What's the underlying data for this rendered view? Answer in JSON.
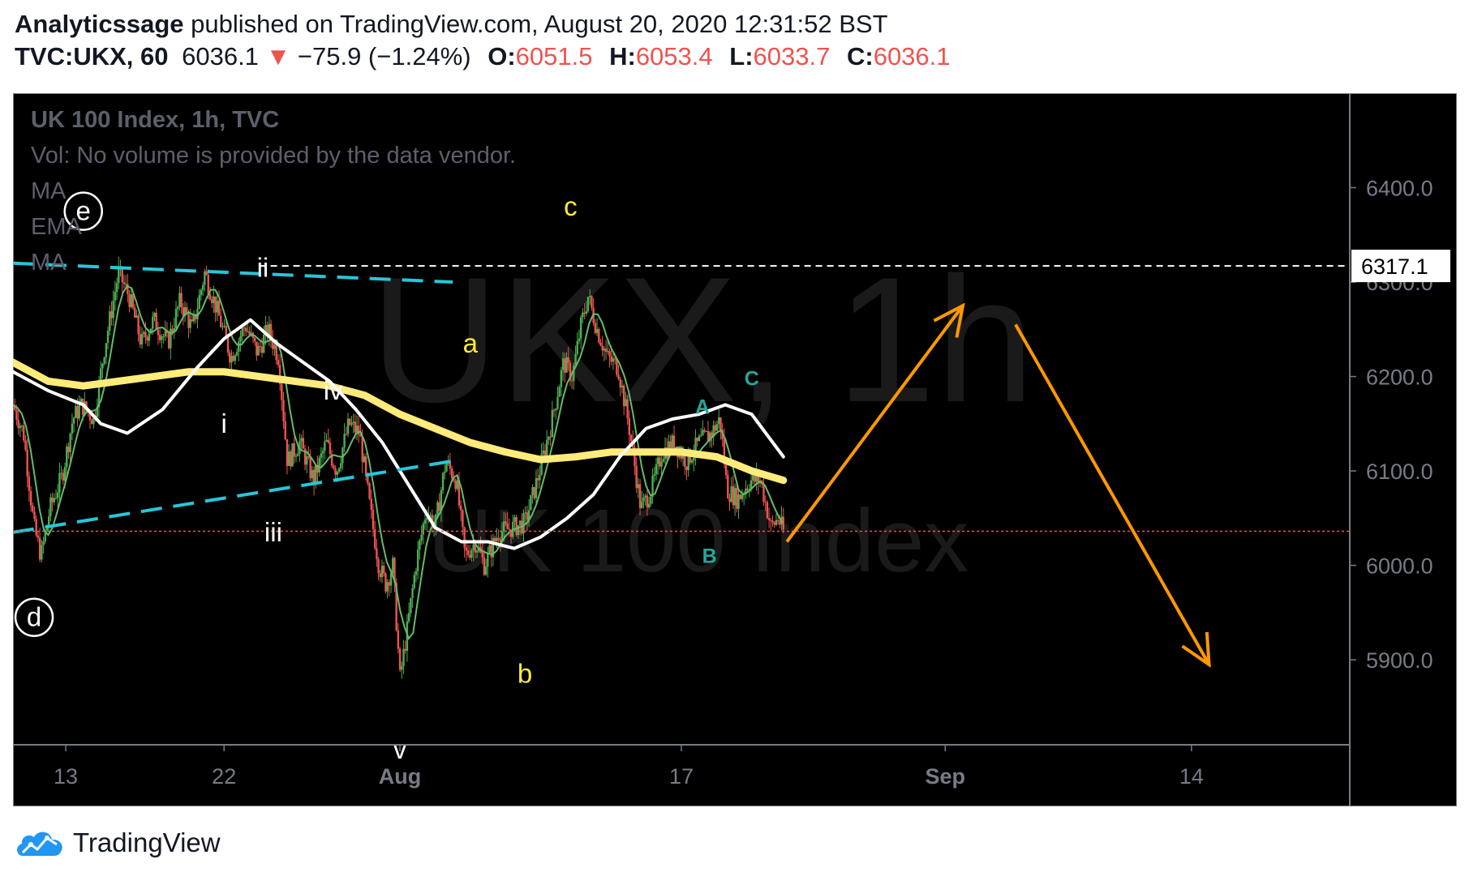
{
  "header": {
    "author": "Analyticssage",
    "published_text": "published on TradingView.com, August 20, 2020 12:31:52 BST",
    "symbol": "TVC:UKX, 60",
    "last": "6036.1",
    "change_arrow": "▼",
    "change": "−75.9 (−1.24%)",
    "o_label": "O:",
    "o_value": "6051.5",
    "h_label": "H:",
    "h_value": "6053.4",
    "l_label": "L:",
    "l_value": "6033.7",
    "c_label": "C:",
    "c_value": "6036.1"
  },
  "legend": {
    "title": "UK 100 Index, 1h, TVC",
    "vol": "Vol: No volume is provided by the data vendor.",
    "ma1": "MA",
    "ema": "EMA",
    "ma2": "MA"
  },
  "watermark": {
    "main": "UKX, 1h",
    "sub": "UK 100 Index"
  },
  "colors": {
    "background": "#000000",
    "up_candle": "#4caf50",
    "down_candle": "#ef5350",
    "ema_yellow": "#ffeb7a",
    "ma_white": "#ffffff",
    "ma_green": "#66bb6a",
    "trendline": "#26c6da",
    "projection": "#ff9800",
    "label_yellow": "#ffeb3b",
    "label_teal": "#26a69a"
  },
  "footer": {
    "brand": "TradingView"
  },
  "chart_data": {
    "type": "line",
    "subtype": "candlestick",
    "symbol": "TVC:UKX",
    "interval": "1h",
    "ylim": [
      5810,
      6500
    ],
    "y_ticks": [
      "6400.0",
      "6300.0",
      "6200.0",
      "6100.0",
      "6000.0",
      "5900.0"
    ],
    "y_tick_values": [
      6400,
      6300,
      6200,
      6100,
      6000,
      5900
    ],
    "x_ticks": [
      "13",
      "22",
      "Aug",
      "17",
      "Sep",
      "14"
    ],
    "x_tick_days": [
      13,
      22,
      32,
      48,
      63,
      77
    ],
    "xlim_days": [
      10,
      86
    ],
    "price_marker": {
      "value": 6317.1,
      "label": "6317.1"
    },
    "last_price": 6036.1,
    "price_path": [
      [
        10.0,
        6170
      ],
      [
        10.6,
        6140
      ],
      [
        11.2,
        6040
      ],
      [
        11.6,
        6010
      ],
      [
        12.1,
        6060
      ],
      [
        12.8,
        6095
      ],
      [
        13.4,
        6155
      ],
      [
        13.9,
        6170
      ],
      [
        14.6,
        6155
      ],
      [
        15.2,
        6230
      ],
      [
        16.0,
        6310
      ],
      [
        16.6,
        6285
      ],
      [
        17.3,
        6235
      ],
      [
        18.0,
        6260
      ],
      [
        18.8,
        6235
      ],
      [
        19.5,
        6280
      ],
      [
        20.2,
        6250
      ],
      [
        20.9,
        6310
      ],
      [
        21.6,
        6270
      ],
      [
        22.4,
        6220
      ],
      [
        23.2,
        6255
      ],
      [
        23.9,
        6225
      ],
      [
        24.5,
        6250
      ],
      [
        25.1,
        6220
      ],
      [
        25.6,
        6110
      ],
      [
        26.3,
        6130
      ],
      [
        27.1,
        6090
      ],
      [
        27.8,
        6130
      ],
      [
        28.4,
        6100
      ],
      [
        29.1,
        6150
      ],
      [
        29.7,
        6140
      ],
      [
        30.3,
        6060
      ],
      [
        30.8,
        6000
      ],
      [
        31.2,
        5980
      ],
      [
        31.6,
        6000
      ],
      [
        32.0,
        5880
      ],
      [
        32.4,
        5930
      ],
      [
        32.9,
        6000
      ],
      [
        33.5,
        6060
      ],
      [
        34.0,
        6040
      ],
      [
        34.6,
        6110
      ],
      [
        35.2,
        6090
      ],
      [
        35.7,
        6010
      ],
      [
        36.3,
        6025
      ],
      [
        36.8,
        6000
      ],
      [
        37.6,
        6035
      ],
      [
        38.4,
        6040
      ],
      [
        39.1,
        6045
      ],
      [
        39.8,
        6090
      ],
      [
        40.6,
        6150
      ],
      [
        41.3,
        6215
      ],
      [
        41.8,
        6200
      ],
      [
        42.3,
        6255
      ],
      [
        42.7,
        6285
      ],
      [
        43.2,
        6250
      ],
      [
        43.8,
        6220
      ],
      [
        44.4,
        6210
      ],
      [
        45.0,
        6150
      ],
      [
        45.7,
        6060
      ],
      [
        46.3,
        6080
      ],
      [
        46.9,
        6120
      ],
      [
        47.6,
        6130
      ],
      [
        48.3,
        6110
      ],
      [
        49.0,
        6130
      ],
      [
        49.7,
        6140
      ],
      [
        50.2,
        6155
      ],
      [
        50.6,
        6080
      ],
      [
        51.2,
        6070
      ],
      [
        51.9,
        6090
      ],
      [
        52.5,
        6090
      ],
      [
        53.1,
        6040
      ],
      [
        53.5,
        6050
      ],
      [
        53.8,
        6036
      ]
    ],
    "series": [
      {
        "name": "EMA",
        "color": "#ffeb7a",
        "points": [
          [
            10,
            6215
          ],
          [
            12,
            6195
          ],
          [
            14,
            6190
          ],
          [
            16,
            6195
          ],
          [
            18,
            6200
          ],
          [
            20,
            6205
          ],
          [
            22,
            6205
          ],
          [
            24,
            6200
          ],
          [
            26,
            6195
          ],
          [
            28,
            6190
          ],
          [
            30,
            6180
          ],
          [
            32,
            6160
          ],
          [
            34,
            6145
          ],
          [
            36,
            6130
          ],
          [
            38,
            6120
          ],
          [
            40,
            6112
          ],
          [
            42,
            6115
          ],
          [
            44,
            6120
          ],
          [
            46,
            6120
          ],
          [
            48,
            6120
          ],
          [
            50,
            6115
          ],
          [
            52,
            6100
          ],
          [
            53.8,
            6090
          ]
        ]
      },
      {
        "name": "MA",
        "color": "#ffffff",
        "points": [
          [
            10,
            6205
          ],
          [
            12,
            6185
          ],
          [
            14,
            6170
          ],
          [
            15,
            6150
          ],
          [
            16.5,
            6140
          ],
          [
            18.5,
            6165
          ],
          [
            20.5,
            6210
          ],
          [
            22,
            6240
          ],
          [
            23.5,
            6260
          ],
          [
            25,
            6235
          ],
          [
            26.5,
            6215
          ],
          [
            28,
            6195
          ],
          [
            29.5,
            6165
          ],
          [
            31,
            6130
          ],
          [
            32.5,
            6085
          ],
          [
            34,
            6040
          ],
          [
            35.5,
            6025
          ],
          [
            37,
            6025
          ],
          [
            38.5,
            6018
          ],
          [
            40,
            6030
          ],
          [
            41.5,
            6050
          ],
          [
            43,
            6075
          ],
          [
            44.5,
            6115
          ],
          [
            46,
            6145
          ],
          [
            47.5,
            6155
          ],
          [
            49,
            6160
          ],
          [
            50.5,
            6170
          ],
          [
            52,
            6160
          ],
          [
            53.8,
            6115
          ]
        ]
      }
    ],
    "trendlines": [
      {
        "points": [
          [
            10,
            6320
          ],
          [
            35,
            6300
          ]
        ]
      },
      {
        "points": [
          [
            10,
            6035
          ],
          [
            35.5,
            6112
          ]
        ]
      }
    ],
    "projection": [
      [
        54,
        6025
      ],
      [
        64,
        6275
      ],
      [
        67,
        6255
      ],
      [
        78,
        5895
      ]
    ],
    "wave_labels": [
      {
        "text": "e",
        "day": 14.0,
        "price": 6375,
        "circled": true,
        "color": "#ffffff"
      },
      {
        "text": "d",
        "day": 11.2,
        "price": 5945,
        "circled": true,
        "color": "#ffffff"
      },
      {
        "text": "ii",
        "day": 24.2,
        "price": 6315,
        "color": "#ffffff"
      },
      {
        "text": "i",
        "day": 22.0,
        "price": 6150,
        "color": "#ffffff"
      },
      {
        "text": "iv",
        "day": 28.2,
        "price": 6185,
        "color": "#ffffff"
      },
      {
        "text": "iii",
        "day": 24.8,
        "price": 6035,
        "color": "#ffffff"
      },
      {
        "text": "v",
        "day": 32.0,
        "price": 5805,
        "color": "#ffffff"
      },
      {
        "text": "a",
        "day": 36.0,
        "price": 6235,
        "color": "#ffeb3b"
      },
      {
        "text": "b",
        "day": 39.1,
        "price": 5885,
        "color": "#ffeb3b"
      },
      {
        "text": "c",
        "day": 41.7,
        "price": 6380,
        "color": "#ffeb3b"
      },
      {
        "text": "C",
        "day": 52.0,
        "price": 6200,
        "color": "#26a69a"
      },
      {
        "text": "A",
        "day": 49.2,
        "price": 6170,
        "color": "#26a69a"
      },
      {
        "text": "B",
        "day": 49.6,
        "price": 6012,
        "color": "#26a69a"
      }
    ]
  }
}
